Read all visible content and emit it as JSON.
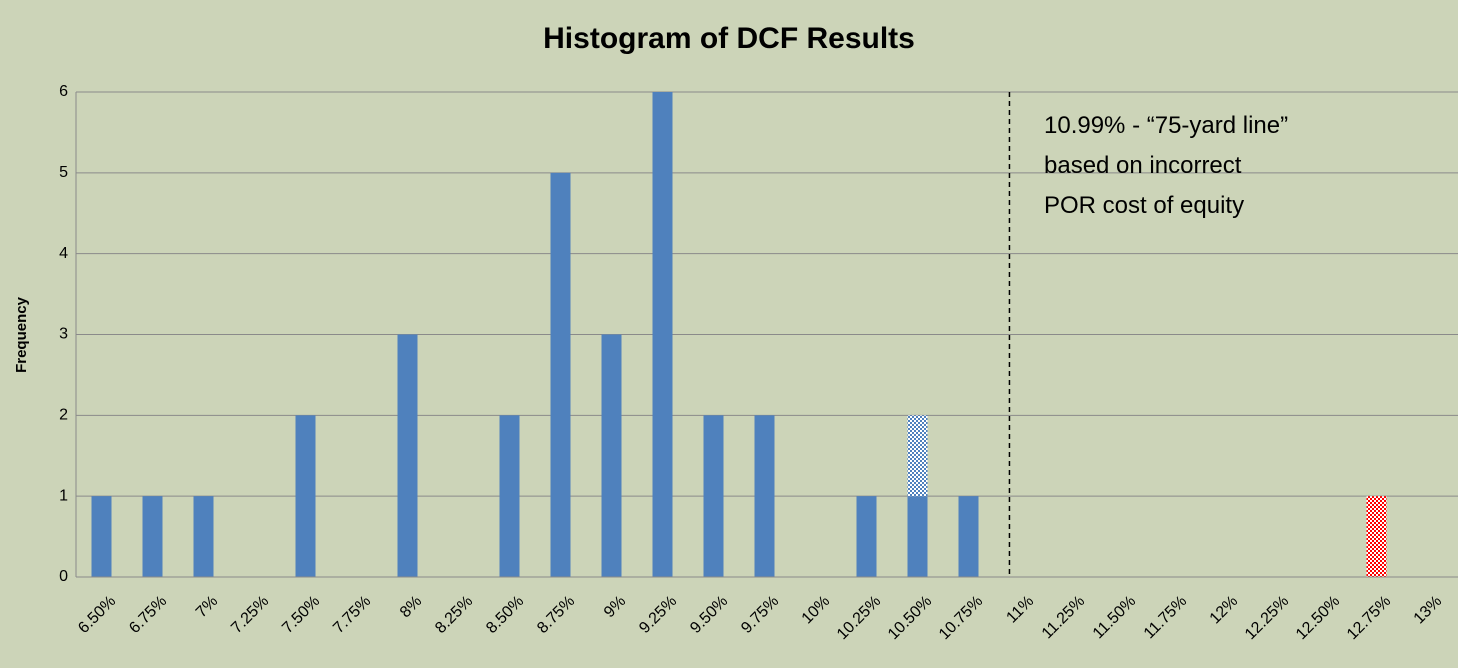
{
  "chart_data": {
    "type": "bar",
    "title": "Histogram of DCF Results",
    "y_label": "Frequency",
    "categories": [
      "6.50%",
      "6.75%",
      "7%",
      "7.25%",
      "7.50%",
      "7.75%",
      "8%",
      "8.25%",
      "8.50%",
      "8.75%",
      "9%",
      "9.25%",
      "9.50%",
      "9.75%",
      "10%",
      "10.25%",
      "10.50%",
      "10.75%",
      "11%",
      "11.25%",
      "11.50%",
      "11.75%",
      "12%",
      "12.25%",
      "12.50%",
      "12.75%",
      "13%"
    ],
    "series": [
      {
        "color": "#4f81bd",
        "pattern": "solid",
        "values": [
          1,
          1,
          1,
          0,
          2,
          0,
          3,
          0,
          2,
          5,
          3,
          6,
          2,
          2,
          0,
          1,
          1,
          1,
          0,
          0,
          0,
          0,
          0,
          0,
          0,
          0,
          0
        ]
      },
      {
        "color": "#4f81bd",
        "pattern": "checker",
        "values": [
          0,
          0,
          0,
          0,
          0,
          0,
          0,
          0,
          0,
          0,
          0,
          0,
          0,
          0,
          0,
          0,
          1,
          0,
          0,
          0,
          0,
          0,
          0,
          0,
          0,
          0,
          0
        ]
      },
      {
        "color": "#ff0000",
        "pattern": "checker",
        "values": [
          0,
          0,
          0,
          0,
          0,
          0,
          0,
          0,
          0,
          0,
          0,
          0,
          0,
          0,
          0,
          0,
          0,
          0,
          0,
          0,
          0,
          0,
          0,
          0,
          0,
          1,
          0
        ]
      }
    ],
    "stacked": true,
    "ylim": [
      0,
      6
    ],
    "yticks": [
      0,
      1,
      2,
      3,
      4,
      5,
      6
    ],
    "grid": true,
    "reference_line": {
      "value": 10.99,
      "label": "10.99% - “75-yard line” based on incorrect POR cost of equity"
    }
  }
}
